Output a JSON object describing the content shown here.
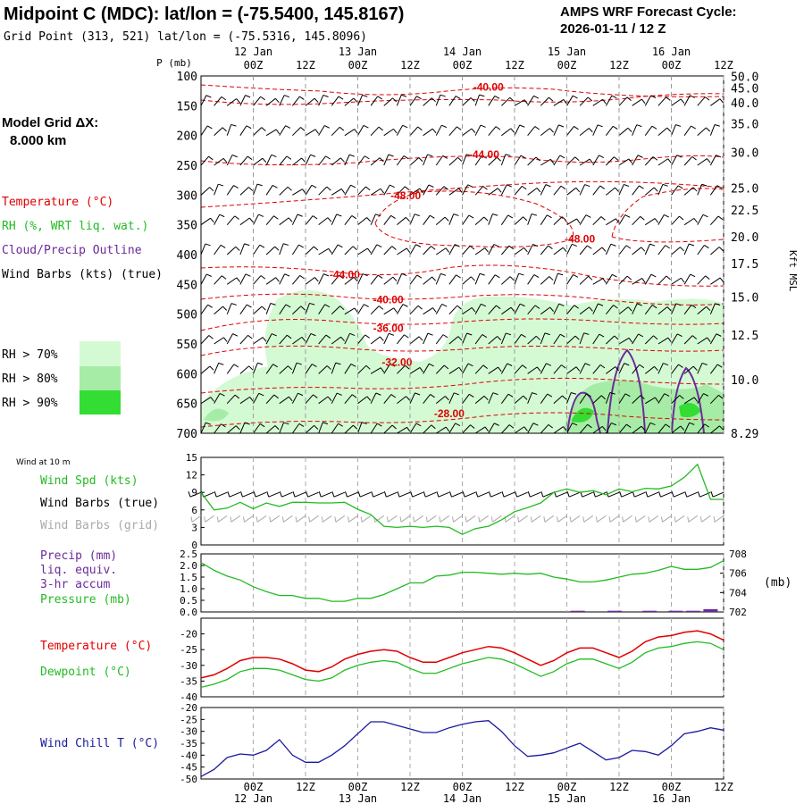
{
  "header": {
    "title": "Midpoint C (MDC):  lat/lon = (-75.5400, 145.8167)",
    "grid_point": "Grid Point (313, 521) lat/lon = (-75.5316, 145.8096)",
    "cycle_line1": "AMPS WRF Forecast Cycle:",
    "cycle_line2": "2026-01-11 / 12  Z"
  },
  "left_labels": {
    "model_grid_1": "Model Grid ΔX:",
    "model_grid_2": "8.000 km",
    "temperature": "Temperature (°C)",
    "rh": "RH (%, WRT liq. wat.)",
    "cloud": "Cloud/Precip Outline",
    "wind_barbs": "Wind Barbs (kts) (true)",
    "rh70": "RH > 70%",
    "rh80": "RH > 80%",
    "rh90": "RH > 90%",
    "wind10": "Wind at 10 m",
    "wind_spd": "Wind Spd (kts)",
    "wind_barbs_true": "Wind Barbs (true)",
    "wind_barbs_grid": "Wind Barbs (grid)",
    "precip1": "Precip (mm)",
    "precip2": "liq. equiv.",
    "precip3": "3-hr accum",
    "pressure": "Pressure (mb)",
    "temp2": "Temperature (°C)",
    "dewpoint": "Dewpoint (°C)",
    "windchill": "Wind Chill T (°C)"
  },
  "colors": {
    "temperature": "#e00000",
    "rh": "#22bb22",
    "cloud": "#6a2a9a",
    "windchill": "#1a1aa0",
    "rh70": "#d4fad4",
    "rh80": "#a6eca6",
    "rh90": "#33dd33",
    "grey": "#aaaaaa"
  },
  "time_axis": {
    "top_dates": [
      "12 Jan",
      "13 Jan",
      "14 Jan",
      "15 Jan",
      "16 Jan"
    ],
    "hour_labels": [
      "00Z",
      "12Z",
      "00Z",
      "12Z",
      "00Z",
      "12Z",
      "00Z",
      "12Z",
      "00Z",
      "12Z"
    ],
    "hour_offsets": [
      12,
      24,
      36,
      48,
      60,
      72,
      84,
      96,
      108,
      120
    ],
    "date_offsets": [
      12,
      36,
      60,
      84,
      108
    ],
    "total_hours": 120
  },
  "chart_data": [
    {
      "type": "heatmap",
      "title": "Time-height cross section",
      "ylabel": "P (mb)",
      "y2label": "Kft MSL",
      "pressure_ticks": [
        "100",
        "150",
        "200",
        "250",
        "300",
        "350",
        "400",
        "450",
        "500",
        "550",
        "600",
        "650",
        "700"
      ],
      "pressure_values": [
        100,
        150,
        200,
        250,
        300,
        350,
        400,
        450,
        500,
        550,
        600,
        650,
        700
      ],
      "height_ticks": [
        "50.0",
        "45.0",
        "40.0",
        "35.0",
        "30.0",
        "25.0",
        "22.5",
        "20.0",
        "17.5",
        "15.0",
        "12.5",
        "10.0",
        "8.29"
      ],
      "height_pressures": [
        101,
        120,
        145,
        180,
        228,
        288,
        325,
        370,
        415,
        471,
        535,
        610,
        700
      ],
      "temperature_contour_labels": [
        {
          "text": "-40.00",
          "t": 66,
          "p": 125
        },
        {
          "text": "-44.00",
          "t": 65,
          "p": 238
        },
        {
          "text": "-48.00",
          "t": 47,
          "p": 307
        },
        {
          "text": "-48.00",
          "t": 87,
          "p": 380
        },
        {
          "text": "-44.00",
          "t": 33,
          "p": 440
        },
        {
          "text": "-40.00",
          "t": 43,
          "p": 482
        },
        {
          "text": "-36.00",
          "t": 43,
          "p": 530
        },
        {
          "text": "-32.00",
          "t": 45,
          "p": 587
        },
        {
          "text": "-28.00",
          "t": 57,
          "p": 673
        }
      ]
    },
    {
      "type": "line",
      "title": "Wind Spd (kts)",
      "ylim": [
        0,
        15
      ],
      "yticks": [
        "0",
        "3",
        "6",
        "9",
        "12",
        "15"
      ],
      "ytick_values": [
        0,
        3,
        6,
        9,
        12,
        15
      ],
      "t": [
        0,
        3,
        6,
        9,
        12,
        15,
        18,
        21,
        24,
        27,
        30,
        33,
        36,
        39,
        42,
        45,
        48,
        51,
        54,
        57,
        60,
        63,
        66,
        69,
        72,
        75,
        78,
        81,
        84,
        87,
        90,
        93,
        96,
        99,
        102,
        105,
        108,
        111,
        114,
        117,
        120
      ],
      "values": [
        9,
        6,
        6.3,
        7.3,
        6.2,
        7.2,
        6.6,
        7.3,
        7.3,
        7.2,
        7.2,
        7.3,
        6.1,
        5.2,
        3.2,
        3,
        3.2,
        3,
        3.2,
        3,
        1.8,
        2.8,
        3.2,
        4.3,
        5.7,
        6.4,
        7.2,
        9,
        9.6,
        9,
        9.3,
        8.6,
        9.6,
        9.1,
        9.7,
        9.6,
        10.1,
        11.6,
        13.8,
        7.8,
        7.8
      ]
    },
    {
      "type": "line",
      "title": "Precip (mm) / Pressure (mb)",
      "ylim": [
        0,
        2.5
      ],
      "yticks": [
        "0.0",
        "0.5",
        "1.0",
        "1.5",
        "2.0",
        "2.5"
      ],
      "ytick_values": [
        0,
        0.5,
        1,
        1.5,
        2,
        2.5
      ],
      "y2lim": [
        702,
        708
      ],
      "y2ticks": [
        "702",
        "704",
        "706",
        "708"
      ],
      "y2tick_values": [
        702,
        704,
        706,
        708
      ],
      "y2label": "(mb)",
      "t": [
        0,
        3,
        6,
        9,
        12,
        15,
        18,
        21,
        24,
        27,
        30,
        33,
        36,
        39,
        42,
        45,
        48,
        51,
        54,
        57,
        60,
        63,
        66,
        69,
        72,
        75,
        78,
        81,
        84,
        87,
        90,
        93,
        96,
        99,
        102,
        105,
        108,
        111,
        114,
        117,
        120
      ],
      "pressure": [
        707.1,
        706.3,
        705.7,
        705.3,
        704.6,
        704.1,
        703.7,
        703.7,
        703.4,
        703.4,
        703.1,
        703.1,
        703.4,
        703.4,
        703.8,
        704.4,
        705.0,
        705.0,
        705.7,
        705.8,
        706.1,
        706.1,
        706.0,
        705.9,
        706.0,
        705.9,
        706.0,
        705.6,
        705.4,
        705.1,
        705.1,
        705.3,
        705.6,
        705.9,
        706.0,
        706.3,
        706.7,
        706.4,
        706.4,
        706.6,
        707.3
      ],
      "precip_bars": [
        {
          "t": 86.5,
          "value": 0.05
        },
        {
          "t": 95,
          "value": 0.05
        },
        {
          "t": 103,
          "value": 0.05
        },
        {
          "t": 109,
          "value": 0.05
        },
        {
          "t": 113,
          "value": 0.05
        },
        {
          "t": 117,
          "value": 0.12
        }
      ]
    },
    {
      "type": "line",
      "title": "Temperature / Dewpoint (°C)",
      "ylim": [
        -40,
        -15
      ],
      "yticks": [
        "-20",
        "-25",
        "-30",
        "-35",
        "-40"
      ],
      "ytick_values": [
        -20,
        -25,
        -30,
        -35,
        -40
      ],
      "t": [
        0,
        3,
        6,
        9,
        12,
        15,
        18,
        21,
        24,
        27,
        30,
        33,
        36,
        39,
        42,
        45,
        48,
        51,
        54,
        57,
        60,
        63,
        66,
        69,
        72,
        75,
        78,
        81,
        84,
        87,
        90,
        93,
        96,
        99,
        102,
        105,
        108,
        111,
        114,
        117,
        120
      ],
      "series": [
        {
          "name": "Temperature",
          "values": [
            -34,
            -33,
            -31,
            -28.5,
            -27.5,
            -27.5,
            -28,
            -29.5,
            -31.5,
            -32,
            -30.5,
            -28,
            -26.5,
            -25.5,
            -25,
            -25.5,
            -27.5,
            -29,
            -29,
            -27.5,
            -26,
            -25,
            -24,
            -24.5,
            -26,
            -28,
            -30,
            -28.5,
            -26,
            -24.5,
            -24.5,
            -26,
            -27.5,
            -25.5,
            -22.5,
            -21,
            -20.5,
            -19.5,
            -19,
            -20,
            -22
          ]
        },
        {
          "name": "Dewpoint",
          "values": [
            -37,
            -36,
            -34.5,
            -32,
            -31,
            -31,
            -31.5,
            -33,
            -34.5,
            -35,
            -34,
            -31.5,
            -30,
            -29,
            -28.5,
            -29,
            -31,
            -32.5,
            -32.5,
            -31,
            -29.5,
            -28.5,
            -27.5,
            -28,
            -29.5,
            -31.5,
            -33.5,
            -32,
            -29.5,
            -28,
            -28,
            -29.5,
            -31,
            -29,
            -26,
            -24.5,
            -24,
            -23,
            -22.5,
            -23,
            -25
          ]
        }
      ]
    },
    {
      "type": "line",
      "title": "Wind Chill T (°C)",
      "ylim": [
        -50,
        -20
      ],
      "yticks": [
        "-20",
        "-25",
        "-30",
        "-35",
        "-40",
        "-45",
        "-50"
      ],
      "ytick_values": [
        -20,
        -25,
        -30,
        -35,
        -40,
        -45,
        -50
      ],
      "t": [
        0,
        3,
        6,
        9,
        12,
        15,
        18,
        21,
        24,
        27,
        30,
        33,
        36,
        39,
        42,
        45,
        48,
        51,
        54,
        57,
        60,
        63,
        66,
        69,
        72,
        75,
        78,
        81,
        84,
        87,
        90,
        93,
        96,
        99,
        102,
        105,
        108,
        111,
        114,
        117,
        120
      ],
      "values": [
        -49,
        -46,
        -41,
        -39.5,
        -40,
        -38,
        -33.5,
        -40,
        -43,
        -43,
        -40,
        -36,
        -31,
        -26,
        -26,
        -27.5,
        -29,
        -30.5,
        -30.5,
        -28.5,
        -27,
        -26,
        -25.5,
        -30,
        -36,
        -40.5,
        -40,
        -39,
        -37,
        -35,
        -38.5,
        -42,
        -41,
        -38,
        -38.5,
        -40,
        -36,
        -31,
        -30,
        -28.5,
        -29.5
      ]
    }
  ]
}
